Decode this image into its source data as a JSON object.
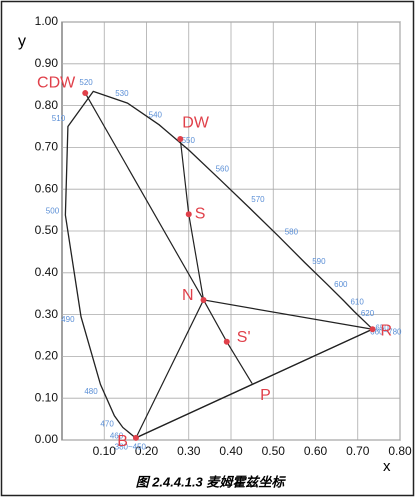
{
  "chart_data": {
    "type": "chromaticity",
    "xlabel": "x",
    "ylabel": "y",
    "caption": "图 2.4.4.1.3 麦姆霍兹坐标",
    "xlim": [
      0,
      0.8
    ],
    "ylim": [
      0,
      1.0
    ],
    "xticks": [
      {
        "value": 0.1,
        "label": "0.10"
      },
      {
        "value": 0.2,
        "label": "0.20"
      },
      {
        "value": 0.3,
        "label": "0.30"
      },
      {
        "value": 0.4,
        "label": "0.40"
      },
      {
        "value": 0.5,
        "label": "0.50"
      },
      {
        "value": 0.6,
        "label": "0.60"
      },
      {
        "value": 0.7,
        "label": "0.70"
      },
      {
        "value": 0.8,
        "label": "0.80"
      }
    ],
    "yticks": [
      {
        "value": 0,
        "label": "0.00"
      },
      {
        "value": 0.1,
        "label": "0.10"
      },
      {
        "value": 0.2,
        "label": "0.20"
      },
      {
        "value": 0.3,
        "label": "0.30"
      },
      {
        "value": 0.4,
        "label": "0.40"
      },
      {
        "value": 0.5,
        "label": "0.50"
      },
      {
        "value": 0.6,
        "label": "0.60"
      },
      {
        "value": 0.7,
        "label": "0.70"
      },
      {
        "value": 0.8,
        "label": "0.80"
      },
      {
        "value": 0.9,
        "label": "0.90"
      },
      {
        "value": 1.0,
        "label": "1.00"
      }
    ],
    "grid": true,
    "locus": {
      "color": "#222222",
      "label_color": "#5b8fd6",
      "x": [
        0.174,
        0.144,
        0.124,
        0.091,
        0.045,
        0.008,
        0.014,
        0.074,
        0.155,
        0.23,
        0.302,
        0.373,
        0.444,
        0.513,
        0.575,
        0.627,
        0.666,
        0.691,
        0.726,
        0.735
      ],
      "y": [
        0.005,
        0.03,
        0.058,
        0.133,
        0.295,
        0.538,
        0.75,
        0.834,
        0.806,
        0.754,
        0.692,
        0.624,
        0.555,
        0.487,
        0.424,
        0.373,
        0.334,
        0.308,
        0.274,
        0.265
      ],
      "labels": [
        "380~450",
        "460",
        "470",
        "480",
        "490",
        "500",
        "510",
        "520",
        "530",
        "540",
        "550",
        "560",
        "570",
        "580",
        "590",
        "600",
        "610",
        "620",
        "650",
        "660~780"
      ]
    },
    "points": {
      "color": "#e0404a",
      "labels": [
        "CDW",
        "DW",
        "S",
        "N",
        "S'",
        "P",
        "R",
        "B"
      ],
      "x": [
        0.055,
        0.28,
        0.3,
        0.335,
        0.39,
        0.45,
        0.735,
        0.175
      ],
      "y": [
        0.83,
        0.72,
        0.54,
        0.335,
        0.235,
        0.135,
        0.265,
        0.005
      ]
    },
    "lines": [
      {
        "x": [
          0.055,
          0.335
        ],
        "y": [
          0.83,
          0.335
        ]
      },
      {
        "x": [
          0.28,
          0.3,
          0.335
        ],
        "y": [
          0.72,
          0.54,
          0.335
        ]
      },
      {
        "x": [
          0.175,
          0.335,
          0.735
        ],
        "y": [
          0.005,
          0.335,
          0.265
        ]
      },
      {
        "x": [
          0.175,
          0.735
        ],
        "y": [
          0.005,
          0.265
        ]
      },
      {
        "x": [
          0.335,
          0.39,
          0.45
        ],
        "y": [
          0.335,
          0.235,
          0.135
        ]
      }
    ]
  }
}
